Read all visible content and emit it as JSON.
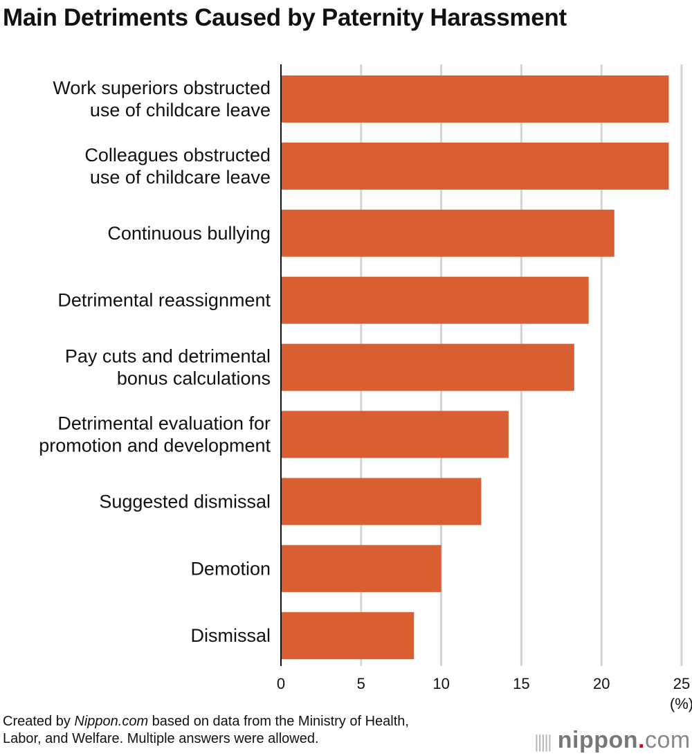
{
  "chart_data": {
    "type": "bar",
    "orientation": "horizontal",
    "title": "Main Detriments Caused by Paternity Harassment",
    "categories": [
      "Work superiors obstructed\nuse of childcare leave",
      "Colleagues obstructed\nuse of childcare leave",
      "Continuous bullying",
      "Detrimental reassignment",
      "Pay cuts and detrimental\nbonus calculations",
      "Detrimental evaluation for\npromotion and development",
      "Suggested dismissal",
      "Demotion",
      "Dismissal"
    ],
    "values": [
      24.2,
      24.2,
      20.8,
      19.2,
      18.3,
      14.2,
      12.5,
      10.0,
      8.3
    ],
    "xlim": [
      0,
      25
    ],
    "xticks": [
      "0",
      "5",
      "10",
      "15",
      "20",
      "25"
    ],
    "xlabel": "(%)",
    "grid": true,
    "bar_color": "#d95f33",
    "grid_color": "#d4d4d4"
  },
  "footer": {
    "pre": "Created by ",
    "source": "Nippon.com",
    "post": " based on data from the Ministry of Health,",
    "line2": "Labor, and Welfare. Multiple answers were allowed."
  },
  "logo": "nippon.com"
}
